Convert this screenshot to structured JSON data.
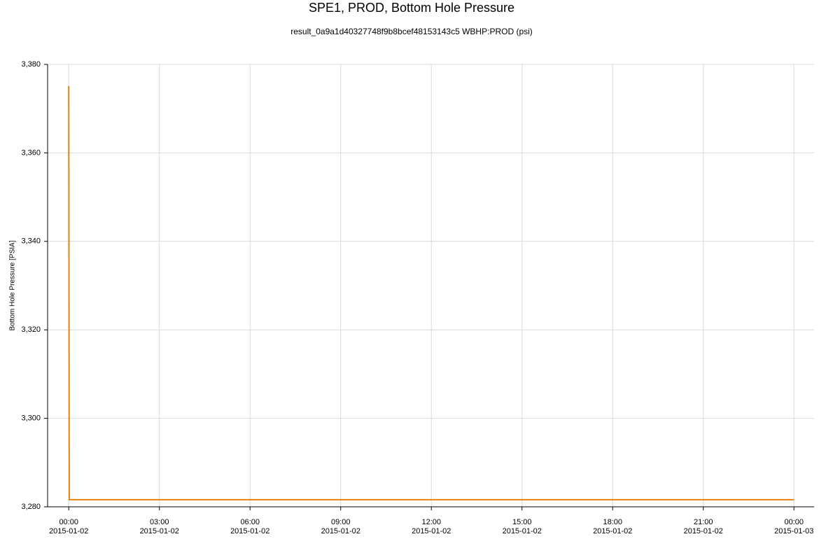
{
  "chart_data": {
    "type": "line",
    "title": "SPE1, PROD, Bottom Hole Pressure",
    "subtitle": "result_0a9a1d40327748f9b8bcef48153143c5 WBHP:PROD (psi)",
    "y_label": "Bottom Hole Pressure [PSIA]",
    "x": [
      "2015-01-02 00:00",
      "2015-01-02 00:01",
      "2015-01-03 00:00"
    ],
    "series": [
      {
        "name": "WBHP:PROD",
        "color": "#e8820c",
        "values": [
          3375.1,
          3281.6,
          3281.6
        ]
      }
    ],
    "xlim": [
      "2015-01-01 23:18",
      "2015-01-03 00:40"
    ],
    "xticks": [
      {
        "value": "2015-01-02 00:00",
        "label": [
          "00:00",
          "2015-01-02"
        ]
      },
      {
        "value": "2015-01-02 03:00",
        "label": [
          "03:00",
          "2015-01-02"
        ]
      },
      {
        "value": "2015-01-02 06:00",
        "label": [
          "06:00",
          "2015-01-02"
        ]
      },
      {
        "value": "2015-01-02 09:00",
        "label": [
          "09:00",
          "2015-01-02"
        ]
      },
      {
        "value": "2015-01-02 12:00",
        "label": [
          "12:00",
          "2015-01-02"
        ]
      },
      {
        "value": "2015-01-02 15:00",
        "label": [
          "15:00",
          "2015-01-02"
        ]
      },
      {
        "value": "2015-01-02 18:00",
        "label": [
          "18:00",
          "2015-01-02"
        ]
      },
      {
        "value": "2015-01-02 21:00",
        "label": [
          "21:00",
          "2015-01-02"
        ]
      },
      {
        "value": "2015-01-03 00:00",
        "label": [
          "00:00",
          "2015-01-03"
        ]
      }
    ],
    "ylim": [
      3280,
      3380
    ],
    "yticks": [
      {
        "value": 3280,
        "label": "3,280"
      },
      {
        "value": 3300,
        "label": "3,300"
      },
      {
        "value": 3320,
        "label": "3,320"
      },
      {
        "value": 3340,
        "label": "3,340"
      },
      {
        "value": 3360,
        "label": "3,360"
      },
      {
        "value": 3380,
        "label": "3,380"
      }
    ],
    "grid": true
  }
}
